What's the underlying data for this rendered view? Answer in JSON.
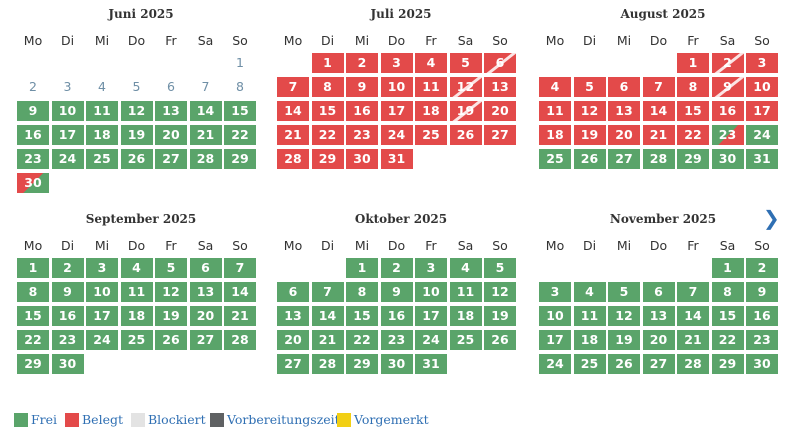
{
  "weekdays": [
    "Mo",
    "Di",
    "Mi",
    "Do",
    "Fr",
    "Sa",
    "So"
  ],
  "months": [
    {
      "title": "Juni 2025",
      "rows": [
        [
          null,
          null,
          null,
          null,
          null,
          null,
          {
            "d": "1",
            "s": "out"
          }
        ],
        [
          {
            "d": "2",
            "s": "out"
          },
          {
            "d": "3",
            "s": "out"
          },
          {
            "d": "4",
            "s": "out"
          },
          {
            "d": "5",
            "s": "out"
          },
          {
            "d": "6",
            "s": "out"
          },
          {
            "d": "7",
            "s": "out"
          },
          {
            "d": "8",
            "s": "out"
          }
        ],
        [
          {
            "d": "9",
            "s": "frei"
          },
          {
            "d": "10",
            "s": "frei"
          },
          {
            "d": "11",
            "s": "frei"
          },
          {
            "d": "12",
            "s": "frei"
          },
          {
            "d": "13",
            "s": "frei"
          },
          {
            "d": "14",
            "s": "frei"
          },
          {
            "d": "15",
            "s": "frei"
          }
        ],
        [
          {
            "d": "16",
            "s": "frei"
          },
          {
            "d": "17",
            "s": "frei"
          },
          {
            "d": "18",
            "s": "frei"
          },
          {
            "d": "19",
            "s": "frei"
          },
          {
            "d": "20",
            "s": "frei"
          },
          {
            "d": "21",
            "s": "frei"
          },
          {
            "d": "22",
            "s": "frei"
          }
        ],
        [
          {
            "d": "23",
            "s": "frei"
          },
          {
            "d": "24",
            "s": "frei"
          },
          {
            "d": "25",
            "s": "frei"
          },
          {
            "d": "26",
            "s": "frei"
          },
          {
            "d": "27",
            "s": "frei"
          },
          {
            "d": "28",
            "s": "frei"
          },
          {
            "d": "29",
            "s": "frei"
          }
        ],
        [
          {
            "d": "30",
            "s": "split-in"
          },
          null,
          null,
          null,
          null,
          null,
          null
        ]
      ]
    },
    {
      "title": "Juli 2025",
      "rows": [
        [
          null,
          {
            "d": "1",
            "s": "belegt"
          },
          {
            "d": "2",
            "s": "belegt"
          },
          {
            "d": "3",
            "s": "belegt"
          },
          {
            "d": "4",
            "s": "belegt"
          },
          {
            "d": "5",
            "s": "belegt"
          },
          {
            "d": "6",
            "s": "belegt hatch"
          }
        ],
        [
          {
            "d": "7",
            "s": "belegt"
          },
          {
            "d": "8",
            "s": "belegt"
          },
          {
            "d": "9",
            "s": "belegt"
          },
          {
            "d": "10",
            "s": "belegt"
          },
          {
            "d": "11",
            "s": "belegt"
          },
          {
            "d": "12",
            "s": "belegt hatch"
          },
          {
            "d": "13",
            "s": "belegt"
          }
        ],
        [
          {
            "d": "14",
            "s": "belegt"
          },
          {
            "d": "15",
            "s": "belegt"
          },
          {
            "d": "16",
            "s": "belegt"
          },
          {
            "d": "17",
            "s": "belegt"
          },
          {
            "d": "18",
            "s": "belegt"
          },
          {
            "d": "19",
            "s": "belegt hatch"
          },
          {
            "d": "20",
            "s": "belegt"
          }
        ],
        [
          {
            "d": "21",
            "s": "belegt"
          },
          {
            "d": "22",
            "s": "belegt"
          },
          {
            "d": "23",
            "s": "belegt"
          },
          {
            "d": "24",
            "s": "belegt"
          },
          {
            "d": "25",
            "s": "belegt"
          },
          {
            "d": "26",
            "s": "belegt"
          },
          {
            "d": "27",
            "s": "belegt"
          }
        ],
        [
          {
            "d": "28",
            "s": "belegt"
          },
          {
            "d": "29",
            "s": "belegt"
          },
          {
            "d": "30",
            "s": "belegt"
          },
          {
            "d": "31",
            "s": "belegt"
          },
          null,
          null,
          null
        ]
      ]
    },
    {
      "title": "August 2025",
      "rows": [
        [
          null,
          null,
          null,
          null,
          {
            "d": "1",
            "s": "belegt"
          },
          {
            "d": "2",
            "s": "belegt hatch"
          },
          {
            "d": "3",
            "s": "belegt"
          }
        ],
        [
          {
            "d": "4",
            "s": "belegt"
          },
          {
            "d": "5",
            "s": "belegt"
          },
          {
            "d": "6",
            "s": "belegt"
          },
          {
            "d": "7",
            "s": "belegt"
          },
          {
            "d": "8",
            "s": "belegt"
          },
          {
            "d": "9",
            "s": "belegt hatch"
          },
          {
            "d": "10",
            "s": "belegt"
          }
        ],
        [
          {
            "d": "11",
            "s": "belegt"
          },
          {
            "d": "12",
            "s": "belegt"
          },
          {
            "d": "13",
            "s": "belegt"
          },
          {
            "d": "14",
            "s": "belegt"
          },
          {
            "d": "15",
            "s": "belegt"
          },
          {
            "d": "16",
            "s": "belegt"
          },
          {
            "d": "17",
            "s": "belegt"
          }
        ],
        [
          {
            "d": "18",
            "s": "belegt"
          },
          {
            "d": "19",
            "s": "belegt"
          },
          {
            "d": "20",
            "s": "belegt"
          },
          {
            "d": "21",
            "s": "belegt"
          },
          {
            "d": "22",
            "s": "belegt"
          },
          {
            "d": "23",
            "s": "split-out"
          },
          {
            "d": "24",
            "s": "frei"
          }
        ],
        [
          {
            "d": "25",
            "s": "frei"
          },
          {
            "d": "26",
            "s": "frei"
          },
          {
            "d": "27",
            "s": "frei"
          },
          {
            "d": "28",
            "s": "frei"
          },
          {
            "d": "29",
            "s": "frei"
          },
          {
            "d": "30",
            "s": "frei"
          },
          {
            "d": "31",
            "s": "frei"
          }
        ]
      ]
    },
    {
      "title": "September 2025",
      "rows": [
        [
          {
            "d": "1",
            "s": "frei"
          },
          {
            "d": "2",
            "s": "frei"
          },
          {
            "d": "3",
            "s": "frei"
          },
          {
            "d": "4",
            "s": "frei"
          },
          {
            "d": "5",
            "s": "frei"
          },
          {
            "d": "6",
            "s": "frei"
          },
          {
            "d": "7",
            "s": "frei"
          }
        ],
        [
          {
            "d": "8",
            "s": "frei"
          },
          {
            "d": "9",
            "s": "frei"
          },
          {
            "d": "10",
            "s": "frei"
          },
          {
            "d": "11",
            "s": "frei"
          },
          {
            "d": "12",
            "s": "frei"
          },
          {
            "d": "13",
            "s": "frei"
          },
          {
            "d": "14",
            "s": "frei"
          }
        ],
        [
          {
            "d": "15",
            "s": "frei"
          },
          {
            "d": "16",
            "s": "frei"
          },
          {
            "d": "17",
            "s": "frei"
          },
          {
            "d": "18",
            "s": "frei"
          },
          {
            "d": "19",
            "s": "frei"
          },
          {
            "d": "20",
            "s": "frei"
          },
          {
            "d": "21",
            "s": "frei"
          }
        ],
        [
          {
            "d": "22",
            "s": "frei"
          },
          {
            "d": "23",
            "s": "frei"
          },
          {
            "d": "24",
            "s": "frei"
          },
          {
            "d": "25",
            "s": "frei"
          },
          {
            "d": "26",
            "s": "frei"
          },
          {
            "d": "27",
            "s": "frei"
          },
          {
            "d": "28",
            "s": "frei"
          }
        ],
        [
          {
            "d": "29",
            "s": "frei"
          },
          {
            "d": "30",
            "s": "frei"
          },
          null,
          null,
          null,
          null,
          null
        ]
      ]
    },
    {
      "title": "Oktober 2025",
      "rows": [
        [
          null,
          null,
          {
            "d": "1",
            "s": "frei"
          },
          {
            "d": "2",
            "s": "frei"
          },
          {
            "d": "3",
            "s": "frei"
          },
          {
            "d": "4",
            "s": "frei"
          },
          {
            "d": "5",
            "s": "frei"
          }
        ],
        [
          {
            "d": "6",
            "s": "frei"
          },
          {
            "d": "7",
            "s": "frei"
          },
          {
            "d": "8",
            "s": "frei"
          },
          {
            "d": "9",
            "s": "frei"
          },
          {
            "d": "10",
            "s": "frei"
          },
          {
            "d": "11",
            "s": "frei"
          },
          {
            "d": "12",
            "s": "frei"
          }
        ],
        [
          {
            "d": "13",
            "s": "frei"
          },
          {
            "d": "14",
            "s": "frei"
          },
          {
            "d": "15",
            "s": "frei"
          },
          {
            "d": "16",
            "s": "frei"
          },
          {
            "d": "17",
            "s": "frei"
          },
          {
            "d": "18",
            "s": "frei"
          },
          {
            "d": "19",
            "s": "frei"
          }
        ],
        [
          {
            "d": "20",
            "s": "frei"
          },
          {
            "d": "21",
            "s": "frei"
          },
          {
            "d": "22",
            "s": "frei"
          },
          {
            "d": "23",
            "s": "frei"
          },
          {
            "d": "24",
            "s": "frei"
          },
          {
            "d": "25",
            "s": "frei"
          },
          {
            "d": "26",
            "s": "frei"
          }
        ],
        [
          {
            "d": "27",
            "s": "frei"
          },
          {
            "d": "28",
            "s": "frei"
          },
          {
            "d": "29",
            "s": "frei"
          },
          {
            "d": "30",
            "s": "frei"
          },
          {
            "d": "31",
            "s": "frei"
          },
          null,
          null
        ]
      ]
    },
    {
      "title": "November 2025",
      "rows": [
        [
          null,
          null,
          null,
          null,
          null,
          {
            "d": "1",
            "s": "frei"
          },
          {
            "d": "2",
            "s": "frei"
          }
        ],
        [
          {
            "d": "3",
            "s": "frei"
          },
          {
            "d": "4",
            "s": "frei"
          },
          {
            "d": "5",
            "s": "frei"
          },
          {
            "d": "6",
            "s": "frei"
          },
          {
            "d": "7",
            "s": "frei"
          },
          {
            "d": "8",
            "s": "frei"
          },
          {
            "d": "9",
            "s": "frei"
          }
        ],
        [
          {
            "d": "10",
            "s": "frei"
          },
          {
            "d": "11",
            "s": "frei"
          },
          {
            "d": "12",
            "s": "frei"
          },
          {
            "d": "13",
            "s": "frei"
          },
          {
            "d": "14",
            "s": "frei"
          },
          {
            "d": "15",
            "s": "frei"
          },
          {
            "d": "16",
            "s": "frei"
          }
        ],
        [
          {
            "d": "17",
            "s": "frei"
          },
          {
            "d": "18",
            "s": "frei"
          },
          {
            "d": "19",
            "s": "frei"
          },
          {
            "d": "20",
            "s": "frei"
          },
          {
            "d": "21",
            "s": "frei"
          },
          {
            "d": "22",
            "s": "frei"
          },
          {
            "d": "23",
            "s": "frei"
          }
        ],
        [
          {
            "d": "24",
            "s": "frei"
          },
          {
            "d": "25",
            "s": "frei"
          },
          {
            "d": "26",
            "s": "frei"
          },
          {
            "d": "27",
            "s": "frei"
          },
          {
            "d": "28",
            "s": "frei"
          },
          {
            "d": "29",
            "s": "frei"
          },
          {
            "d": "30",
            "s": "frei"
          }
        ]
      ]
    }
  ],
  "navigation": {
    "next_icon": "chevron-right-icon",
    "next_glyph": "❯"
  },
  "legend": [
    {
      "label": "Frei",
      "color": "#5aa46a"
    },
    {
      "label": "Belegt",
      "color": "#e34a4a"
    },
    {
      "label": "Blockiert",
      "color": "#e3e3e3"
    },
    {
      "label": "Vorbereitungszeit",
      "color": "#5f6163"
    },
    {
      "label": "Vorgemerkt",
      "color": "#f2cf14"
    }
  ]
}
